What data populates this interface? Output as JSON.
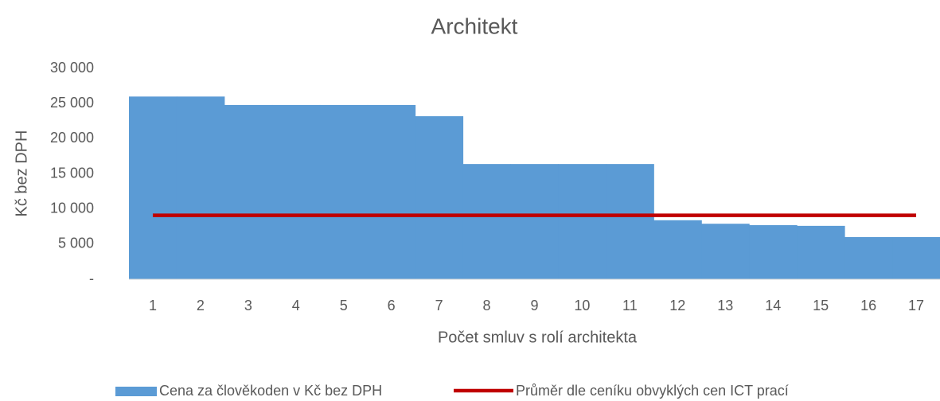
{
  "chart_data": {
    "type": "bar",
    "title": "Architekt",
    "x_label": "Počet smluv s rolí architekta",
    "y_label": "Kč bez DPH",
    "categories": [
      "1",
      "2",
      "3",
      "4",
      "5",
      "6",
      "7",
      "8",
      "9",
      "10",
      "11",
      "12",
      "13",
      "14",
      "15",
      "16",
      "17"
    ],
    "series": [
      {
        "name": "Cena za člověkoden v Kč bez DPH",
        "type": "bar",
        "color": "#5b9bd5",
        "values": [
          26000,
          26000,
          24800,
          24800,
          24800,
          24800,
          23200,
          16400,
          16400,
          16400,
          16400,
          8400,
          7900,
          7700,
          7600,
          6000,
          6000
        ]
      },
      {
        "name": "Průměr dle ceníku obvyklých cen ICT prací",
        "type": "line",
        "color": "#c00000",
        "values": [
          9100,
          9100,
          9100,
          9100,
          9100,
          9100,
          9100,
          9100,
          9100,
          9100,
          9100,
          9100,
          9100,
          9100,
          9100,
          9100,
          9100
        ]
      }
    ],
    "ylim": [
      0,
      30000
    ],
    "yticks": [
      {
        "value": 0,
        "label": "-"
      },
      {
        "value": 5000,
        "label": "5 000"
      },
      {
        "value": 10000,
        "label": "10 000"
      },
      {
        "value": 15000,
        "label": "15 000"
      },
      {
        "value": 20000,
        "label": "20 000"
      },
      {
        "value": 25000,
        "label": "25 000"
      },
      {
        "value": 30000,
        "label": "30 000"
      }
    ],
    "grid": false,
    "legend": "bottom"
  }
}
